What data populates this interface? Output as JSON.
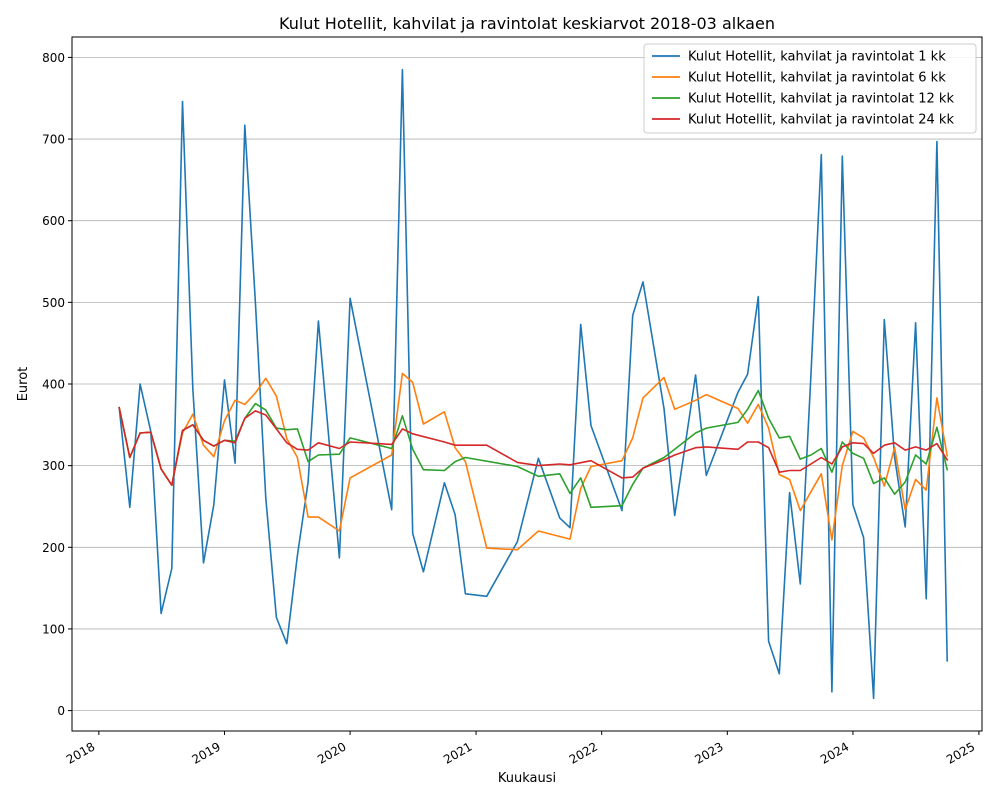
{
  "chart_data": {
    "type": "line",
    "title": "Kulut Hotellit, kahvilat ja ravintolat keskiarvot 2018-03 alkaen",
    "xlabel": "Kuukausi",
    "ylabel": "Eurot",
    "xlim": [
      "2017-10-15",
      "2025-01-10"
    ],
    "ylim": [
      -25,
      825
    ],
    "y_ticks": [
      0,
      100,
      200,
      300,
      400,
      500,
      600,
      700,
      800
    ],
    "x_ticks": [
      {
        "date": "2018-01-01",
        "label": "2018"
      },
      {
        "date": "2019-01-01",
        "label": "2019"
      },
      {
        "date": "2020-01-01",
        "label": "2020"
      },
      {
        "date": "2021-01-01",
        "label": "2021"
      },
      {
        "date": "2022-01-01",
        "label": "2022"
      },
      {
        "date": "2023-01-01",
        "label": "2023"
      },
      {
        "date": "2024-01-01",
        "label": "2024"
      },
      {
        "date": "2025-01-01",
        "label": "2025"
      }
    ],
    "grid": "horizontal",
    "legend_position": "top-right",
    "series": [
      {
        "name": "Kulut Hotellit, kahvilat ja ravintolat 1 kk",
        "color": "#1f77b4",
        "points": [
          [
            "2018-03-01",
            371
          ],
          [
            "2018-04-01",
            249
          ],
          [
            "2018-05-01",
            400
          ],
          [
            "2018-06-01",
            342
          ],
          [
            "2018-07-01",
            119
          ],
          [
            "2018-08-01",
            174
          ],
          [
            "2018-09-01",
            746
          ],
          [
            "2018-10-01",
            395
          ],
          [
            "2018-11-01",
            181
          ],
          [
            "2018-12-01",
            252
          ],
          [
            "2019-01-01",
            405
          ],
          [
            "2019-02-01",
            303
          ],
          [
            "2019-03-01",
            717
          ],
          [
            "2019-04-01",
            500
          ],
          [
            "2019-05-01",
            260
          ],
          [
            "2019-06-01",
            114
          ],
          [
            "2019-07-01",
            82
          ],
          [
            "2019-08-01",
            190
          ],
          [
            "2019-09-01",
            280
          ],
          [
            "2019-10-01",
            477
          ],
          [
            "2019-11-01",
            330
          ],
          [
            "2019-12-01",
            187
          ],
          [
            "2020-01-01",
            505
          ],
          [
            "2020-05-01",
            246
          ],
          [
            "2020-06-01",
            785
          ],
          [
            "2020-07-01",
            217
          ],
          [
            "2020-08-01",
            170
          ],
          [
            "2020-10-01",
            279
          ],
          [
            "2020-11-01",
            240
          ],
          [
            "2020-12-01",
            143
          ],
          [
            "2021-02-01",
            140
          ],
          [
            "2021-05-01",
            207
          ],
          [
            "2021-07-01",
            309
          ],
          [
            "2021-09-01",
            236
          ],
          [
            "2021-10-01",
            224
          ],
          [
            "2021-11-01",
            473
          ],
          [
            "2021-12-01",
            349
          ],
          [
            "2022-03-01",
            245
          ],
          [
            "2022-04-01",
            484
          ],
          [
            "2022-05-01",
            525
          ],
          [
            "2022-07-01",
            370
          ],
          [
            "2022-08-01",
            239
          ],
          [
            "2022-10-01",
            411
          ],
          [
            "2022-11-01",
            288
          ],
          [
            "2023-02-01",
            390
          ],
          [
            "2023-03-01",
            412
          ],
          [
            "2023-04-01",
            507
          ],
          [
            "2023-05-01",
            85
          ],
          [
            "2023-06-01",
            45
          ],
          [
            "2023-07-01",
            267
          ],
          [
            "2023-08-01",
            155
          ],
          [
            "2023-09-01",
            410
          ],
          [
            "2023-10-01",
            681
          ],
          [
            "2023-11-01",
            23
          ],
          [
            "2023-12-01",
            679
          ],
          [
            "2024-01-01",
            252
          ],
          [
            "2024-02-01",
            212
          ],
          [
            "2024-03-01",
            15
          ],
          [
            "2024-04-01",
            479
          ],
          [
            "2024-05-01",
            310
          ],
          [
            "2024-06-01",
            225
          ],
          [
            "2024-07-01",
            475
          ],
          [
            "2024-08-01",
            137
          ],
          [
            "2024-09-01",
            697
          ],
          [
            "2024-10-01",
            61
          ]
        ]
      },
      {
        "name": "Kulut Hotellit, kahvilat ja ravintolat 6 kk",
        "color": "#ff7f0e",
        "points": [
          [
            "2018-03-01",
            371
          ],
          [
            "2018-04-01",
            310
          ],
          [
            "2018-05-01",
            340
          ],
          [
            "2018-06-01",
            341
          ],
          [
            "2018-07-01",
            296
          ],
          [
            "2018-08-01",
            276
          ],
          [
            "2018-09-01",
            340
          ],
          [
            "2018-10-01",
            363
          ],
          [
            "2018-11-01",
            325
          ],
          [
            "2018-12-01",
            311
          ],
          [
            "2019-01-01",
            355
          ],
          [
            "2019-02-01",
            380
          ],
          [
            "2019-03-01",
            375
          ],
          [
            "2019-04-01",
            389
          ],
          [
            "2019-05-01",
            407
          ],
          [
            "2019-06-01",
            385
          ],
          [
            "2019-07-01",
            333
          ],
          [
            "2019-08-01",
            310
          ],
          [
            "2019-09-01",
            237
          ],
          [
            "2019-10-01",
            237
          ],
          [
            "2019-12-01",
            220
          ],
          [
            "2020-01-01",
            285
          ],
          [
            "2020-05-01",
            313
          ],
          [
            "2020-06-01",
            413
          ],
          [
            "2020-07-01",
            402
          ],
          [
            "2020-08-01",
            351
          ],
          [
            "2020-10-01",
            366
          ],
          [
            "2020-11-01",
            322
          ],
          [
            "2020-12-01",
            305
          ],
          [
            "2021-02-01",
            199
          ],
          [
            "2021-05-01",
            197
          ],
          [
            "2021-07-01",
            220
          ],
          [
            "2021-10-01",
            210
          ],
          [
            "2021-11-01",
            272
          ],
          [
            "2021-12-01",
            299
          ],
          [
            "2022-03-01",
            306
          ],
          [
            "2022-04-01",
            334
          ],
          [
            "2022-05-01",
            383
          ],
          [
            "2022-07-01",
            408
          ],
          [
            "2022-08-01",
            369
          ],
          [
            "2022-10-01",
            380
          ],
          [
            "2022-11-01",
            387
          ],
          [
            "2023-02-01",
            370
          ],
          [
            "2023-03-01",
            352
          ],
          [
            "2023-04-01",
            375
          ],
          [
            "2023-05-01",
            346
          ],
          [
            "2023-06-01",
            289
          ],
          [
            "2023-07-01",
            283
          ],
          [
            "2023-08-01",
            245
          ],
          [
            "2023-09-01",
            268
          ],
          [
            "2023-10-01",
            290
          ],
          [
            "2023-11-01",
            209
          ],
          [
            "2023-12-01",
            300
          ],
          [
            "2024-01-01",
            342
          ],
          [
            "2024-02-01",
            334
          ],
          [
            "2024-03-01",
            310
          ],
          [
            "2024-04-01",
            275
          ],
          [
            "2024-05-01",
            322
          ],
          [
            "2024-06-01",
            246
          ],
          [
            "2024-07-01",
            283
          ],
          [
            "2024-08-01",
            270
          ],
          [
            "2024-09-01",
            383
          ],
          [
            "2024-10-01",
            312
          ]
        ]
      },
      {
        "name": "Kulut Hotellit, kahvilat ja ravintolat 12 kk",
        "color": "#2ca02c",
        "points": [
          [
            "2018-03-01",
            371
          ],
          [
            "2018-04-01",
            310
          ],
          [
            "2018-05-01",
            340
          ],
          [
            "2018-06-01",
            341
          ],
          [
            "2018-07-01",
            296
          ],
          [
            "2018-08-01",
            276
          ],
          [
            "2018-09-01",
            343
          ],
          [
            "2018-10-01",
            350
          ],
          [
            "2018-11-01",
            331
          ],
          [
            "2018-12-01",
            324
          ],
          [
            "2019-01-01",
            331
          ],
          [
            "2019-02-01",
            330
          ],
          [
            "2019-03-01",
            358
          ],
          [
            "2019-04-01",
            376
          ],
          [
            "2019-05-01",
            368
          ],
          [
            "2019-06-01",
            346
          ],
          [
            "2019-07-01",
            344
          ],
          [
            "2019-08-01",
            345
          ],
          [
            "2019-09-01",
            305
          ],
          [
            "2019-10-01",
            313
          ],
          [
            "2019-12-01",
            314
          ],
          [
            "2020-01-01",
            334
          ],
          [
            "2020-05-01",
            321
          ],
          [
            "2020-06-01",
            361
          ],
          [
            "2020-07-01",
            320
          ],
          [
            "2020-08-01",
            295
          ],
          [
            "2020-10-01",
            294
          ],
          [
            "2020-11-01",
            305
          ],
          [
            "2020-12-01",
            310
          ],
          [
            "2021-05-01",
            299
          ],
          [
            "2021-07-01",
            287
          ],
          [
            "2021-09-01",
            290
          ],
          [
            "2021-10-01",
            266
          ],
          [
            "2021-11-01",
            285
          ],
          [
            "2021-12-01",
            249
          ],
          [
            "2022-03-01",
            251
          ],
          [
            "2022-04-01",
            277
          ],
          [
            "2022-05-01",
            297
          ],
          [
            "2022-07-01",
            310
          ],
          [
            "2022-08-01",
            320
          ],
          [
            "2022-10-01",
            340
          ],
          [
            "2022-11-01",
            346
          ],
          [
            "2023-02-01",
            353
          ],
          [
            "2023-03-01",
            369
          ],
          [
            "2023-04-01",
            392
          ],
          [
            "2023-05-01",
            358
          ],
          [
            "2023-06-01",
            334
          ],
          [
            "2023-07-01",
            336
          ],
          [
            "2023-08-01",
            308
          ],
          [
            "2023-09-01",
            313
          ],
          [
            "2023-10-01",
            321
          ],
          [
            "2023-11-01",
            292
          ],
          [
            "2023-12-01",
            329
          ],
          [
            "2024-01-01",
            315
          ],
          [
            "2024-02-01",
            309
          ],
          [
            "2024-03-01",
            278
          ],
          [
            "2024-04-01",
            285
          ],
          [
            "2024-05-01",
            265
          ],
          [
            "2024-06-01",
            280
          ],
          [
            "2024-07-01",
            313
          ],
          [
            "2024-08-01",
            302
          ],
          [
            "2024-09-01",
            347
          ],
          [
            "2024-10-01",
            295
          ]
        ]
      },
      {
        "name": "Kulut Hotellit, kahvilat ja ravintolat 24 kk",
        "color": "#d62728",
        "points": [
          [
            "2018-03-01",
            371
          ],
          [
            "2018-04-01",
            310
          ],
          [
            "2018-05-01",
            340
          ],
          [
            "2018-06-01",
            341
          ],
          [
            "2018-07-01",
            296
          ],
          [
            "2018-08-01",
            276
          ],
          [
            "2018-09-01",
            343
          ],
          [
            "2018-10-01",
            350
          ],
          [
            "2018-11-01",
            331
          ],
          [
            "2018-12-01",
            324
          ],
          [
            "2019-01-01",
            331
          ],
          [
            "2019-02-01",
            328
          ],
          [
            "2019-03-01",
            358
          ],
          [
            "2019-04-01",
            367
          ],
          [
            "2019-05-01",
            362
          ],
          [
            "2019-06-01",
            345
          ],
          [
            "2019-07-01",
            328
          ],
          [
            "2019-08-01",
            320
          ],
          [
            "2019-09-01",
            319
          ],
          [
            "2019-10-01",
            328
          ],
          [
            "2019-12-01",
            321
          ],
          [
            "2020-01-01",
            329
          ],
          [
            "2020-05-01",
            326
          ],
          [
            "2020-06-01",
            345
          ],
          [
            "2020-07-01",
            339
          ],
          [
            "2020-10-01",
            329
          ],
          [
            "2020-11-01",
            325
          ],
          [
            "2021-02-01",
            325
          ],
          [
            "2021-05-01",
            304
          ],
          [
            "2021-07-01",
            300
          ],
          [
            "2021-09-01",
            302
          ],
          [
            "2021-10-01",
            301
          ],
          [
            "2021-12-01",
            306
          ],
          [
            "2022-03-01",
            285
          ],
          [
            "2022-04-01",
            286
          ],
          [
            "2022-05-01",
            297
          ],
          [
            "2022-07-01",
            307
          ],
          [
            "2022-08-01",
            313
          ],
          [
            "2022-10-01",
            322
          ],
          [
            "2022-11-01",
            323
          ],
          [
            "2023-02-01",
            320
          ],
          [
            "2023-03-01",
            329
          ],
          [
            "2023-04-01",
            329
          ],
          [
            "2023-05-01",
            322
          ],
          [
            "2023-06-01",
            292
          ],
          [
            "2023-07-01",
            294
          ],
          [
            "2023-08-01",
            294
          ],
          [
            "2023-09-01",
            302
          ],
          [
            "2023-10-01",
            310
          ],
          [
            "2023-11-01",
            302
          ],
          [
            "2023-12-01",
            323
          ],
          [
            "2024-01-01",
            328
          ],
          [
            "2024-02-01",
            327
          ],
          [
            "2024-03-01",
            315
          ],
          [
            "2024-04-01",
            325
          ],
          [
            "2024-05-01",
            328
          ],
          [
            "2024-06-01",
            319
          ],
          [
            "2024-07-01",
            323
          ],
          [
            "2024-08-01",
            319
          ],
          [
            "2024-09-01",
            327
          ],
          [
            "2024-10-01",
            307
          ]
        ]
      }
    ]
  }
}
